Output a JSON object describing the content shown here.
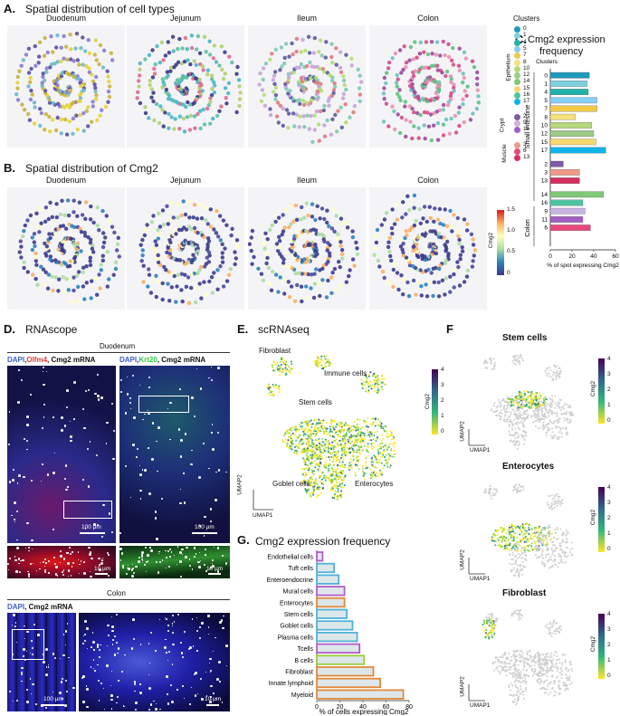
{
  "panelA": {
    "letter": "A.",
    "title": "Spatial distribution of cell types",
    "tissues": [
      "Duodenum",
      "Jejunum",
      "Ileum",
      "Colon"
    ],
    "legend_title": "Clusters",
    "groups": [
      {
        "name": "Epithelium",
        "clusters": [
          "0",
          "1",
          "4",
          "5",
          "7",
          "8",
          "10",
          "12",
          "14",
          "15",
          "16",
          "17"
        ]
      },
      {
        "name": "Crypt",
        "clusters": [
          "2",
          "9",
          "11"
        ]
      },
      {
        "name": "Muscle",
        "clusters": [
          "3",
          "6",
          "13"
        ]
      }
    ],
    "colors": {
      "0": "#1f9ab8",
      "1": "#7fd1e0",
      "4": "#20b2aa",
      "5": "#87cefa",
      "7": "#f2c84b",
      "8": "#f5e07a",
      "10": "#b7d87c",
      "12": "#9ccc8a",
      "14": "#80c879",
      "15": "#f7d86f",
      "16": "#4fc3a1",
      "17": "#0fb4e8",
      "2": "#7d5ba6",
      "9": "#c9b3e3",
      "11": "#a15fc1",
      "3": "#f09a8a",
      "6": "#e64a7b",
      "13": "#d62f5d"
    }
  },
  "panelB": {
    "letter": "B.",
    "title": "Spatial distribution of Cmg2",
    "tissues": [
      "Duodenum",
      "Jejunum",
      "Ileum",
      "Colon"
    ],
    "colorbar": {
      "label": "Cmg2",
      "ticks": [
        "1.5",
        "1.0",
        "0.5",
        "0"
      ]
    }
  },
  "panelC": {
    "letter": "C.",
    "title_line1": "Cmg2 expression",
    "title_line2": "frequency",
    "clusters_label": "Clusters",
    "group_small": "Small intestine",
    "group_colon": "Colon",
    "xlabel": "% of spot expressing Cmg2"
  },
  "chart_data": [
    {
      "type": "bar",
      "title": "Cmg2 expression frequency",
      "xlabel": "% of spot expressing Cmg2",
      "ylabel": "Clusters",
      "xlim": [
        0,
        60
      ],
      "xticks": [
        "0",
        "20",
        "40",
        "60"
      ],
      "categories": [
        "0",
        "1",
        "4",
        "5",
        "7",
        "8",
        "10",
        "12",
        "15",
        "17",
        "2",
        "3",
        "13",
        "14",
        "16",
        "9",
        "11",
        "6"
      ],
      "values": [
        36,
        34,
        35,
        43,
        43,
        23,
        38,
        40,
        42,
        51,
        12,
        27,
        27,
        49,
        30,
        32,
        30,
        37
      ],
      "colors": [
        "#1f9ab8",
        "#7fd1e0",
        "#20b2aa",
        "#87cefa",
        "#f2c84b",
        "#f5e07a",
        "#b7d87c",
        "#9ccc8a",
        "#f7d86f",
        "#0fb4e8",
        "#7d5ba6",
        "#f09a8a",
        "#d62f5d",
        "#80c879",
        "#4fc3a1",
        "#c9b3e3",
        "#a15fc1",
        "#e64a7b"
      ]
    },
    {
      "type": "bar",
      "title": "Cmg2 expression  frequency",
      "xlabel": "% of cells expressing Cmg2",
      "xlim": [
        0,
        80
      ],
      "xticks": [
        "0",
        "20",
        "40",
        "60",
        "80"
      ],
      "categories": [
        "Endothelial cells",
        "Tuft cells",
        "Enteroendocrine",
        "Mural cells",
        "Enterocytes",
        "Stem cells",
        "Goblet cells",
        "Plasma cells",
        "Tcells",
        "B cells",
        "Fibroblast",
        "Innate lymphoid",
        "Myeloid"
      ],
      "values": [
        5,
        15,
        19,
        24,
        24,
        26,
        31,
        35,
        37,
        41,
        49,
        55,
        75
      ],
      "colors": [
        "#b25cc9",
        "#4fb3d9",
        "#4fb3d9",
        "#b25cc9",
        "#e08a3a",
        "#4fb3d9",
        "#4fb3d9",
        "#4fb3d9",
        "#b25cc9",
        "#9ccc3a",
        "#e08a3a",
        "#e08a3a",
        "#e08a3a"
      ]
    }
  ],
  "panelD": {
    "letter": "D.",
    "title": "RNAscope",
    "duodenum": "Duodenum",
    "colon": "Colon",
    "label_left": {
      "dapi": "DAPI",
      "sep1": ",",
      "marker": "Olfm4",
      "rest": ", Cmg2 mRNA"
    },
    "label_right": {
      "dapi": "DAPI",
      "sep1": ",",
      "marker": "Krt20",
      "rest": ", Cmg2 mRNA"
    },
    "label_colon": {
      "dapi": "DAPI",
      "rest": ", Cmg2 mRNA"
    },
    "scale_100": "100 µm",
    "scale_10": "10 µm"
  },
  "panelE": {
    "letter": "E.",
    "title": "scRNAseq",
    "labels": {
      "fibroblast": "Fibroblast",
      "immune": "Immune cells",
      "stem": "Stem cells",
      "goblet": "Goblet cells",
      "entero": "Enterocytes"
    },
    "umap1": "UMAP1",
    "umap2": "UMAP2",
    "colorbar": {
      "label": "Cmg2",
      "ticks": [
        "4",
        "3",
        "2",
        "1",
        "0"
      ]
    }
  },
  "panelF": {
    "letter": "F",
    "umap1": "UMAP1",
    "umap2": "UMAP2",
    "sub": [
      "Stem cells",
      "Enterocytes",
      "Fibroblast"
    ],
    "colorbar": {
      "label": "Cmg2",
      "ticks": [
        "4",
        "3",
        "2",
        "1",
        "0"
      ]
    }
  },
  "panelG": {
    "letter": "G.",
    "title": "Cmg2 expression  frequency",
    "xlabel": "% of cells expressing Cmg2"
  }
}
